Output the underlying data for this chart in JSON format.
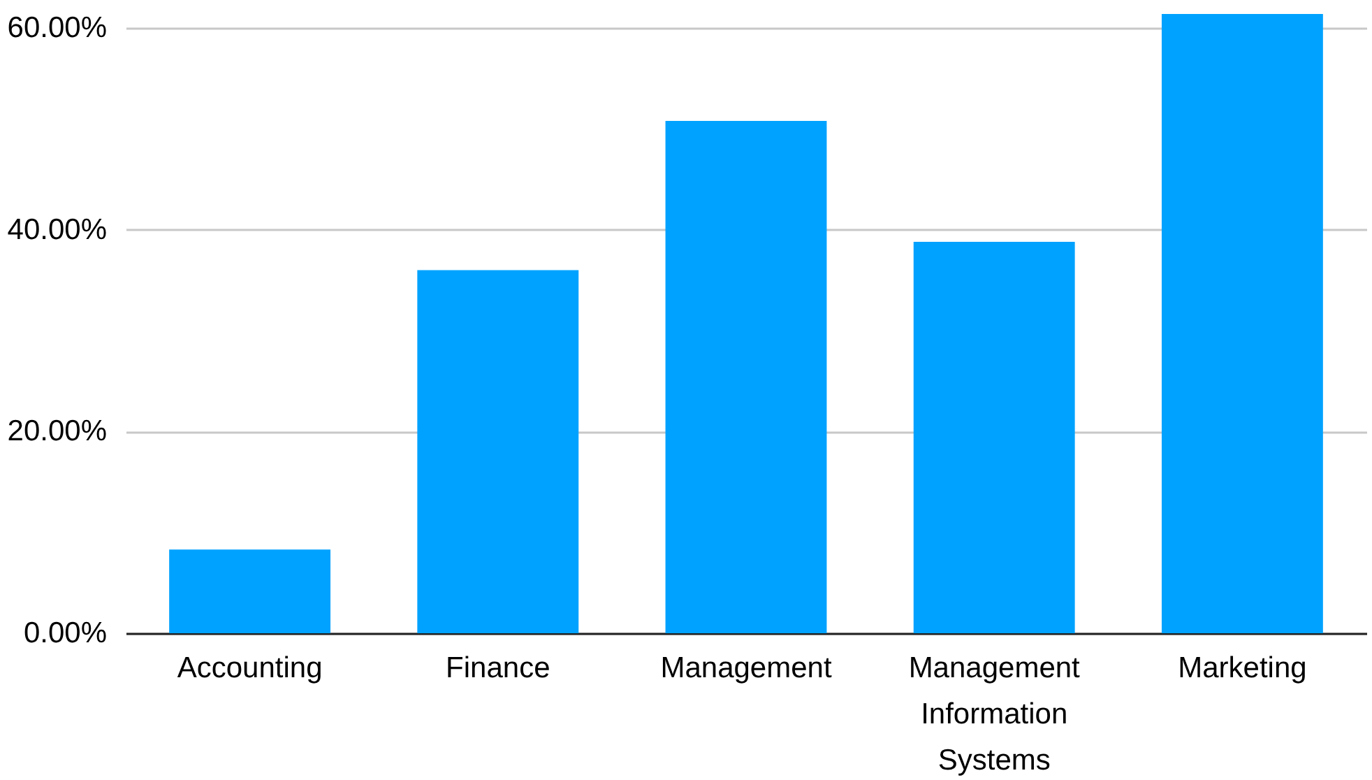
{
  "chart_data": {
    "type": "bar",
    "categories": [
      "Accounting",
      "Finance",
      "Management",
      "Management Information Systems",
      "Marketing"
    ],
    "values": [
      8.3,
      36.0,
      50.8,
      38.8,
      61.4
    ],
    "color": "#00a2ff",
    "ylim": [
      0,
      61.4
    ],
    "yticks": [
      {
        "value": 0,
        "label": "0.00%"
      },
      {
        "value": 20,
        "label": "20.00%"
      },
      {
        "value": 40,
        "label": "40.00%"
      },
      {
        "value": 60,
        "label": "60.00%"
      }
    ],
    "grid": "y"
  }
}
